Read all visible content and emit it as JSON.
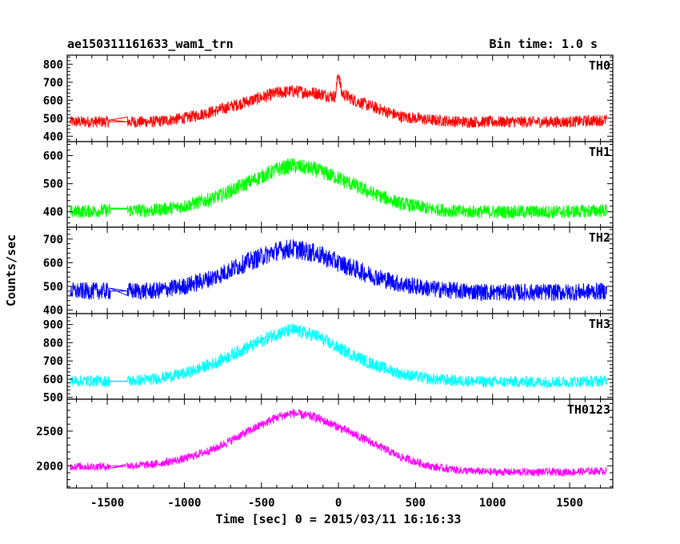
{
  "header": {
    "title": "ae150311161633_wam1_trn",
    "bin_time": "Bin time: 1.0 s"
  },
  "axes": {
    "xlabel": "Time [sec] 0 = 2015/03/11 16:16:33",
    "ylabel": "Counts/sec"
  },
  "chart_data": {
    "type": "line",
    "title": "ae150311161633_wam1_trn",
    "xlabel": "Time [sec] 0 = 2015/03/11 16:16:33",
    "ylabel": "Counts/sec",
    "xlim": [
      -1760,
      1780
    ],
    "xticks": [
      -1500,
      -1000,
      -500,
      0,
      500,
      1000,
      1500
    ],
    "grid": false,
    "data_gap_sec": [
      -1480,
      -1370
    ],
    "series": [
      {
        "name": "TH0",
        "color": "#ff0000",
        "ylim": [
          370,
          850
        ],
        "yticks": [
          400,
          500,
          600,
          700,
          800
        ],
        "gap_level": 480,
        "noise_halfwidth": 40,
        "profile": {
          "x": [
            -1740,
            -1480,
            -1370,
            -1200,
            -1000,
            -800,
            -600,
            -400,
            -300,
            -150,
            -20,
            0,
            20,
            100,
            200,
            300,
            400,
            600,
            800,
            1000,
            1200,
            1500,
            1740
          ],
          "y": [
            480,
            480,
            480,
            480,
            500,
            540,
            590,
            640,
            650,
            640,
            620,
            760,
            640,
            600,
            570,
            540,
            510,
            490,
            480,
            480,
            480,
            480,
            490
          ]
        }
      },
      {
        "name": "TH1",
        "color": "#00ff00",
        "ylim": [
          345,
          650
        ],
        "yticks": [
          400,
          500,
          600
        ],
        "gap_level": 410,
        "noise_halfwidth": 30,
        "profile": {
          "x": [
            -1740,
            -1480,
            -1370,
            -1200,
            -1000,
            -800,
            -600,
            -400,
            -300,
            -150,
            0,
            200,
            400,
            600,
            800,
            1000,
            1200,
            1500,
            1740
          ],
          "y": [
            400,
            405,
            405,
            405,
            420,
            450,
            500,
            550,
            565,
            550,
            520,
            470,
            430,
            410,
            400,
            400,
            400,
            400,
            405
          ]
        }
      },
      {
        "name": "TH2",
        "color": "#0000ff",
        "ylim": [
          385,
          750
        ],
        "yticks": [
          400,
          500,
          600,
          700
        ],
        "gap_level": 480,
        "noise_halfwidth": 45,
        "profile": {
          "x": [
            -1740,
            -1480,
            -1370,
            -1200,
            -1000,
            -800,
            -600,
            -400,
            -300,
            -150,
            0,
            200,
            400,
            600,
            800,
            1000,
            1200,
            1500,
            1740
          ],
          "y": [
            480,
            480,
            480,
            480,
            500,
            540,
            600,
            650,
            660,
            640,
            600,
            550,
            510,
            490,
            480,
            475,
            475,
            475,
            480
          ]
        }
      },
      {
        "name": "TH3",
        "color": "#00ffff",
        "ylim": [
          490,
          960
        ],
        "yticks": [
          500,
          600,
          700,
          800,
          900
        ],
        "gap_level": 590,
        "noise_halfwidth": 40,
        "profile": {
          "x": [
            -1740,
            -1480,
            -1370,
            -1200,
            -1000,
            -800,
            -600,
            -400,
            -300,
            -150,
            0,
            200,
            400,
            600,
            800,
            1000,
            1200,
            1500,
            1740
          ],
          "y": [
            590,
            590,
            590,
            600,
            630,
            690,
            770,
            850,
            870,
            840,
            770,
            690,
            630,
            600,
            590,
            585,
            585,
            585,
            590
          ]
        }
      },
      {
        "name": "TH0123",
        "color": "#ff00ff",
        "ylim": [
          1680,
          2960
        ],
        "yticks": [
          2000,
          2500
        ],
        "gap_level": 2000,
        "noise_halfwidth": 70,
        "profile": {
          "x": [
            -1740,
            -1480,
            -1370,
            -1200,
            -1000,
            -800,
            -600,
            -400,
            -300,
            -150,
            0,
            200,
            400,
            600,
            800,
            1000,
            1200,
            1500,
            1740
          ],
          "y": [
            1990,
            1990,
            2000,
            2020,
            2100,
            2250,
            2480,
            2700,
            2760,
            2700,
            2560,
            2350,
            2130,
            1990,
            1930,
            1910,
            1910,
            1910,
            1930
          ]
        }
      }
    ]
  }
}
